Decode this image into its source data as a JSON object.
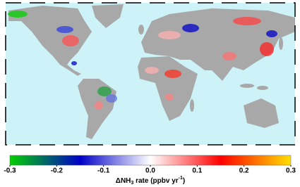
{
  "colorbar": {
    "lim": [
      -0.3,
      0.3
    ],
    "ticks": [
      -0.3,
      -0.2,
      -0.1,
      {
        "value": 0,
        "label": "0.0"
      },
      0.1,
      0.2,
      0.3
    ],
    "colors": [
      "#00d000",
      "#0000c8",
      "#ffffff",
      "#ff0000",
      "#ffe000"
    ],
    "label": [
      "ΔNH",
      "3",
      " rate (ppbv yr",
      "-1",
      ")"
    ]
  }
}
